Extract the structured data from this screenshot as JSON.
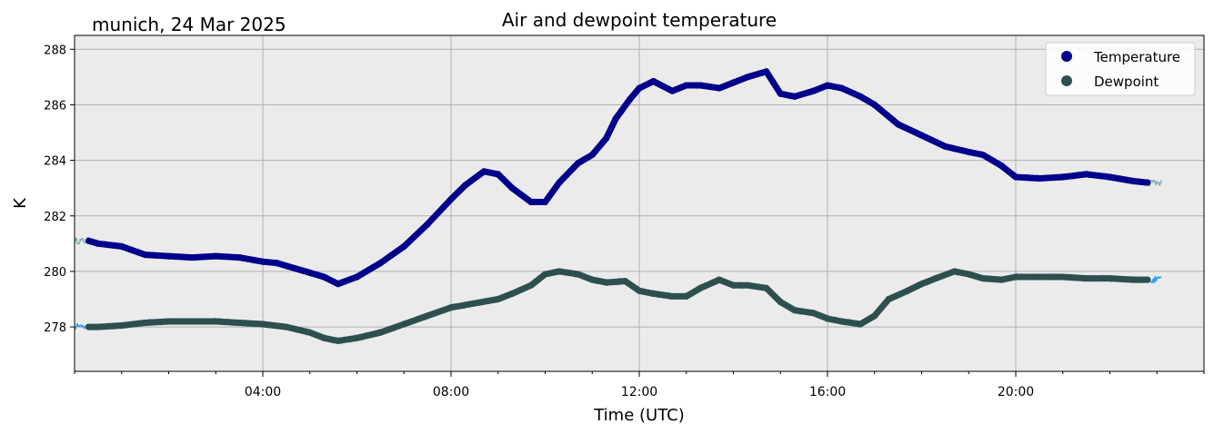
{
  "chart_data": {
    "type": "line",
    "title": "Air and dewpoint temperature",
    "subtitle": "munich, 24 Mar 2025",
    "xlabel": "Time (UTC)",
    "ylabel": "K",
    "xlim": [
      0,
      24
    ],
    "ylim": [
      276.4,
      288.5
    ],
    "xticks": [
      {
        "value": 4,
        "label": "04:00"
      },
      {
        "value": 8,
        "label": "08:00"
      },
      {
        "value": 12,
        "label": "12:00"
      },
      {
        "value": 16,
        "label": "16:00"
      },
      {
        "value": 20,
        "label": "20:00"
      }
    ],
    "yticks": [
      278,
      280,
      282,
      284,
      286,
      288
    ],
    "grid": true,
    "legend_position": "top-right",
    "colors": {
      "temperature": "#00008b",
      "temperature_raw": "#7fb0b3",
      "dewpoint": "#2f4f4f",
      "dewpoint_raw": "#2a9df4",
      "axes_bg": "#ebebeb",
      "grid": "#b0b0b0"
    },
    "series": [
      {
        "name": "Temperature",
        "key": "temperature",
        "x": [
          0.3,
          0.5,
          1.0,
          1.5,
          2.0,
          2.5,
          3.0,
          3.5,
          4.0,
          4.3,
          4.7,
          5.0,
          5.3,
          5.6,
          6.0,
          6.5,
          7.0,
          7.5,
          8.0,
          8.3,
          8.7,
          9.0,
          9.3,
          9.7,
          10.0,
          10.3,
          10.7,
          11.0,
          11.3,
          11.5,
          11.8,
          12.0,
          12.3,
          12.7,
          13.0,
          13.3,
          13.7,
          14.0,
          14.3,
          14.7,
          15.0,
          15.3,
          15.7,
          16.0,
          16.3,
          16.7,
          17.0,
          17.5,
          18.0,
          18.5,
          19.0,
          19.3,
          19.7,
          20.0,
          20.5,
          21.0,
          21.5,
          22.0,
          22.5,
          22.8
        ],
        "y": [
          281.1,
          281.0,
          280.9,
          280.6,
          280.55,
          280.5,
          280.55,
          280.5,
          280.35,
          280.3,
          280.1,
          279.95,
          279.8,
          279.55,
          279.8,
          280.3,
          280.9,
          281.7,
          282.6,
          283.1,
          283.6,
          283.5,
          283.0,
          282.5,
          282.5,
          283.2,
          283.9,
          284.2,
          284.8,
          285.5,
          286.2,
          286.6,
          286.85,
          286.5,
          286.7,
          286.7,
          286.6,
          286.8,
          287.0,
          287.2,
          286.4,
          286.3,
          286.5,
          286.7,
          286.6,
          286.3,
          286.0,
          285.3,
          284.9,
          284.5,
          284.3,
          284.2,
          283.8,
          283.4,
          283.35,
          283.4,
          283.5,
          283.4,
          283.25,
          283.2
        ]
      },
      {
        "name": "Dewpoint",
        "key": "dewpoint",
        "x": [
          0.3,
          0.5,
          1.0,
          1.5,
          2.0,
          2.5,
          3.0,
          3.5,
          4.0,
          4.5,
          5.0,
          5.3,
          5.6,
          6.0,
          6.5,
          7.0,
          7.5,
          8.0,
          8.5,
          9.0,
          9.3,
          9.7,
          10.0,
          10.3,
          10.7,
          11.0,
          11.3,
          11.7,
          12.0,
          12.3,
          12.7,
          13.0,
          13.3,
          13.7,
          14.0,
          14.3,
          14.7,
          15.0,
          15.3,
          15.7,
          16.0,
          16.3,
          16.7,
          17.0,
          17.3,
          17.7,
          18.0,
          18.3,
          18.7,
          19.0,
          19.3,
          19.7,
          20.0,
          20.5,
          21.0,
          21.5,
          22.0,
          22.5,
          22.8
        ],
        "y": [
          278.0,
          278.0,
          278.05,
          278.15,
          278.2,
          278.2,
          278.2,
          278.15,
          278.1,
          278.0,
          277.8,
          277.6,
          277.5,
          277.6,
          277.8,
          278.1,
          278.4,
          278.7,
          278.85,
          279.0,
          279.2,
          279.5,
          279.9,
          280.0,
          279.9,
          279.7,
          279.6,
          279.65,
          279.3,
          279.2,
          279.1,
          279.1,
          279.4,
          279.7,
          279.5,
          279.5,
          279.4,
          278.9,
          278.6,
          278.5,
          278.3,
          278.2,
          278.1,
          278.4,
          279.0,
          279.3,
          279.55,
          279.75,
          280.0,
          279.9,
          279.75,
          279.7,
          279.8,
          279.8,
          279.8,
          279.75,
          279.75,
          279.7,
          279.7
        ]
      }
    ]
  }
}
